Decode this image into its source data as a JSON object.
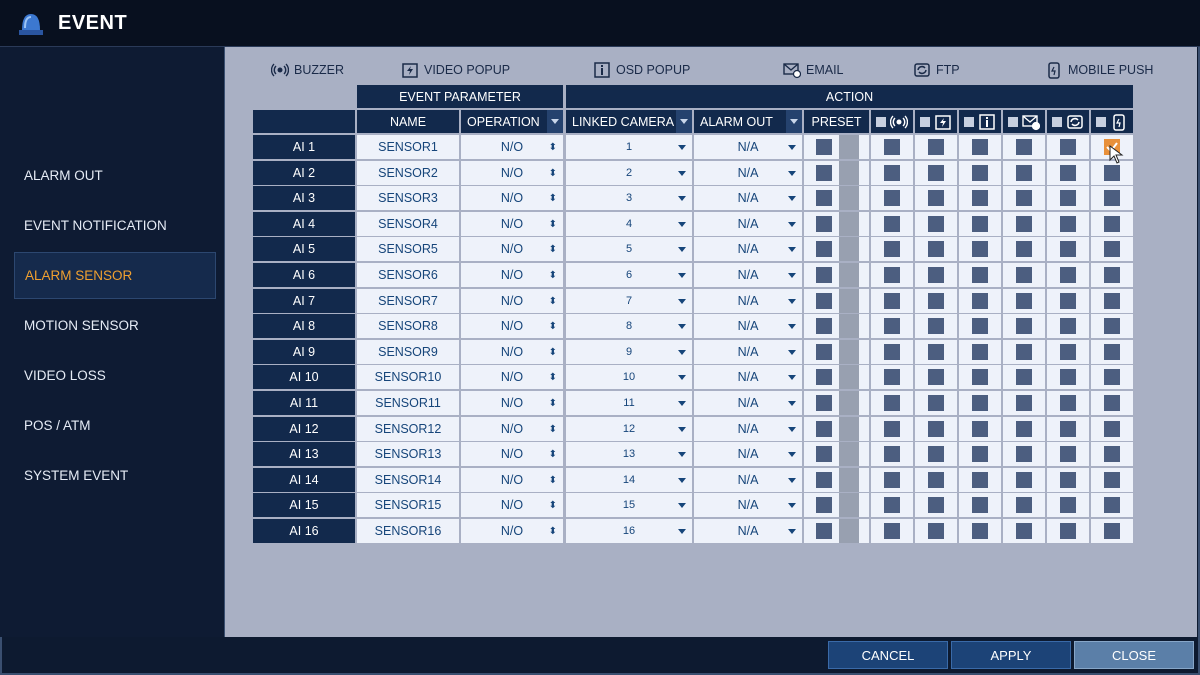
{
  "window": {
    "title": "EVENT"
  },
  "sidebar": {
    "items": [
      {
        "label": "ALARM OUT",
        "active": false
      },
      {
        "label": "EVENT NOTIFICATION",
        "active": false
      },
      {
        "label": "ALARM SENSOR",
        "active": true
      },
      {
        "label": "MOTION SENSOR",
        "active": false
      },
      {
        "label": "VIDEO LOSS",
        "active": false
      },
      {
        "label": "POS / ATM",
        "active": false
      },
      {
        "label": "SYSTEM EVENT",
        "active": false
      }
    ]
  },
  "legend": [
    {
      "icon": "buzzer-icon",
      "label": "BUZZER"
    },
    {
      "icon": "video-popup-icon",
      "label": "VIDEO POPUP"
    },
    {
      "icon": "osd-popup-icon",
      "label": "OSD POPUP"
    },
    {
      "icon": "email-icon",
      "label": "EMAIL"
    },
    {
      "icon": "ftp-icon",
      "label": "FTP"
    },
    {
      "icon": "mobile-push-icon",
      "label": "MOBILE PUSH"
    }
  ],
  "table": {
    "group_event_parameter": "EVENT PARAMETER",
    "group_action": "ACTION",
    "col_name": "NAME",
    "col_operation": "OPERATION",
    "col_linked_camera": "LINKED CAMERA",
    "col_alarm_out": "ALARM OUT",
    "col_preset": "PRESET",
    "action_icons": [
      "buzzer-icon",
      "video-popup-icon",
      "osd-popup-icon",
      "email-icon",
      "ftp-icon",
      "mobile-push-icon"
    ],
    "rows": [
      {
        "id": "AI 1",
        "name": "SENSOR1",
        "operation": "N/O",
        "camera": "1",
        "alarm_out": "N/A",
        "mobile_push": true
      },
      {
        "id": "AI 2",
        "name": "SENSOR2",
        "operation": "N/O",
        "camera": "2",
        "alarm_out": "N/A",
        "mobile_push": false
      },
      {
        "id": "AI 3",
        "name": "SENSOR3",
        "operation": "N/O",
        "camera": "3",
        "alarm_out": "N/A",
        "mobile_push": false
      },
      {
        "id": "AI 4",
        "name": "SENSOR4",
        "operation": "N/O",
        "camera": "4",
        "alarm_out": "N/A",
        "mobile_push": false
      },
      {
        "id": "AI 5",
        "name": "SENSOR5",
        "operation": "N/O",
        "camera": "5",
        "alarm_out": "N/A",
        "mobile_push": false
      },
      {
        "id": "AI 6",
        "name": "SENSOR6",
        "operation": "N/O",
        "camera": "6",
        "alarm_out": "N/A",
        "mobile_push": false
      },
      {
        "id": "AI 7",
        "name": "SENSOR7",
        "operation": "N/O",
        "camera": "7",
        "alarm_out": "N/A",
        "mobile_push": false
      },
      {
        "id": "AI 8",
        "name": "SENSOR8",
        "operation": "N/O",
        "camera": "8",
        "alarm_out": "N/A",
        "mobile_push": false
      },
      {
        "id": "AI 9",
        "name": "SENSOR9",
        "operation": "N/O",
        "camera": "9",
        "alarm_out": "N/A",
        "mobile_push": false
      },
      {
        "id": "AI 10",
        "name": "SENSOR10",
        "operation": "N/O",
        "camera": "10",
        "alarm_out": "N/A",
        "mobile_push": false
      },
      {
        "id": "AI 11",
        "name": "SENSOR11",
        "operation": "N/O",
        "camera": "11",
        "alarm_out": "N/A",
        "mobile_push": false
      },
      {
        "id": "AI 12",
        "name": "SENSOR12",
        "operation": "N/O",
        "camera": "12",
        "alarm_out": "N/A",
        "mobile_push": false
      },
      {
        "id": "AI 13",
        "name": "SENSOR13",
        "operation": "N/O",
        "camera": "13",
        "alarm_out": "N/A",
        "mobile_push": false
      },
      {
        "id": "AI 14",
        "name": "SENSOR14",
        "operation": "N/O",
        "camera": "14",
        "alarm_out": "N/A",
        "mobile_push": false
      },
      {
        "id": "AI 15",
        "name": "SENSOR15",
        "operation": "N/O",
        "camera": "15",
        "alarm_out": "N/A",
        "mobile_push": false
      },
      {
        "id": "AI 16",
        "name": "SENSOR16",
        "operation": "N/O",
        "camera": "16",
        "alarm_out": "N/A",
        "mobile_push": false
      }
    ]
  },
  "footer": {
    "cancel": "CANCEL",
    "apply": "APPLY",
    "close": "CLOSE"
  },
  "colors": {
    "accent": "#f0a030",
    "header": "#12294c",
    "checkbox": "#4c5e80",
    "checked": "#e8903a"
  }
}
